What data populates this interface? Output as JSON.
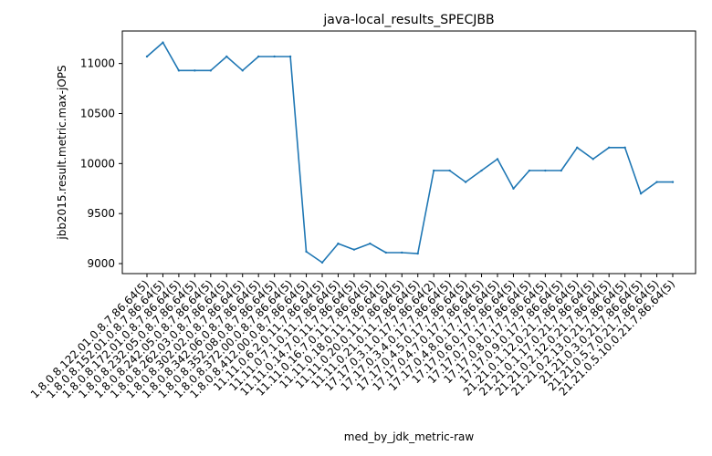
{
  "chart_data": {
    "type": "line",
    "title": "java-local_results_SPECJBB",
    "xlabel": "med_by_jdk_metric-raw",
    "ylabel": "jbb2015.result.metric.max-jOPS",
    "categories": [
      "1.8.0.8.122.01.0.8.7.86.64(5)",
      "1.8.0.8.152.01.0.8.7.86.64(5)",
      "1.8.0.8.172.01.0.8.7.86.64(5)",
      "1.8.0.8.232.05.0.8.7.86.64(5)",
      "1.8.0.8.242.05.0.8.7.86.64(5)",
      "1.8.0.8.262.03.0.8.7.86.64(5)",
      "1.8.0.8.302.02.0.8.7.86.64(5)",
      "1.8.0.8.342.06.0.8.7.86.64(5)",
      "1.8.0.8.352.08.0.8.7.86.64(5)",
      "1.8.0.8.372.00.0.8.7.86.64(5)",
      "1.8.0.8.412.00.0.8.7.86.64(5)",
      "11.11.0.6.2.0.11.7.86.64(5)",
      "11.11.0.7.1.0.11.7.86.64(5)",
      "11.11.0.14.7.0.11.7.86.64(5)",
      "11.11.0.16.7.0.11.7.86.64(5)",
      "11.11.0.18.0.11.7.86.64(5)",
      "11.11.0.20.0.11.7.86.64(5)",
      "11.11.0.21.0.11.7.86.64(5)",
      "17.17.0.3.1.0.17.7.86.64(2)",
      "17.17.0.3.4.0.17.7.86.64(5)",
      "17.17.0.4.5.0.17.7.86.64(5)",
      "17.17.0.4.7.0.17.7.86.64(5)",
      "17.17.0.4.8.0.17.7.86.64(5)",
      "17.17.0.6.0.17.7.86.64(5)",
      "17.17.0.7.0.17.7.86.64(5)",
      "17.17.0.8.0.17.7.86.64(5)",
      "17.17.0.9.0.17.7.86.64(5)",
      "21.21.0.1.12.0.21.7.86.64(5)",
      "21.21.0.1.17.0.21.7.86.64(5)",
      "21.21.0.2.12.0.21.7.86.64(5)",
      "21.21.0.2.13.0.21.7.86.64(5)",
      "21.21.0.3.0.21.7.86.64(5)",
      "21.21.0.5.7.0.21.7.86.64(5)",
      "21.21.0.5.10.0.21.7.86.64(5)"
    ],
    "values": [
      11070,
      11210,
      10930,
      10930,
      10930,
      11070,
      10930,
      11070,
      11070,
      11070,
      9120,
      9010,
      9200,
      9140,
      9200,
      9110,
      9110,
      9100,
      9930,
      9930,
      9815,
      9930,
      10045,
      9750,
      9930,
      9930,
      9930,
      10160,
      10045,
      10160,
      10160,
      9700,
      9815,
      9815
    ],
    "yticks": [
      "9000",
      "9500",
      "10000",
      "10500",
      "11000"
    ],
    "ylim": [
      8900,
      11325
    ],
    "grid": false,
    "line_color": "#1f77b4"
  }
}
